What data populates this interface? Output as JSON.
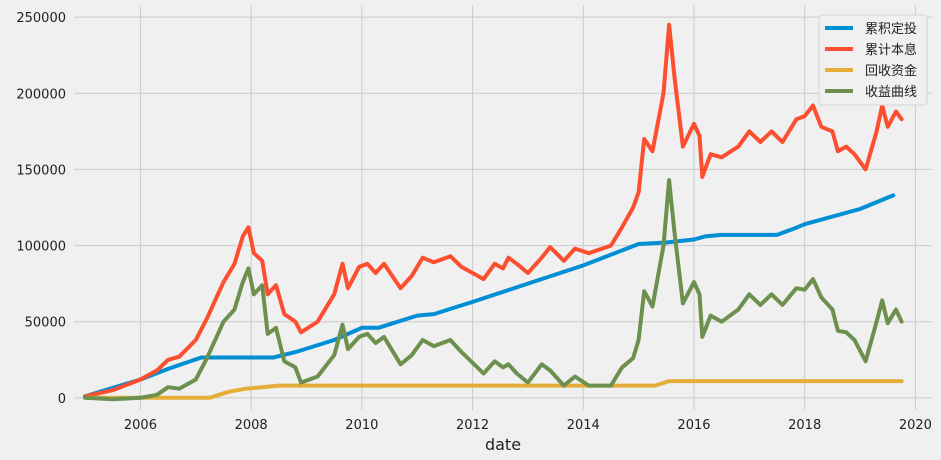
{
  "chart_data": {
    "type": "line",
    "title": "",
    "xlabel": "date",
    "ylabel": "",
    "xlim": [
      2004.8,
      2020.3
    ],
    "ylim": [
      -8000,
      258000
    ],
    "x_ticks": [
      2006,
      2008,
      2010,
      2012,
      2014,
      2016,
      2018,
      2020
    ],
    "y_ticks": [
      0,
      50000,
      100000,
      150000,
      200000,
      250000
    ],
    "grid": true,
    "legend_position": "top-right",
    "series": [
      {
        "name": "累积定投",
        "color": "#008fd5",
        "points": [
          [
            2005.0,
            1000
          ],
          [
            2006.0,
            12000
          ],
          [
            2006.5,
            19000
          ],
          [
            2007.1,
            26500
          ],
          [
            2007.5,
            26500
          ],
          [
            2008.0,
            26500
          ],
          [
            2008.4,
            26500
          ],
          [
            2008.8,
            30000
          ],
          [
            2009.5,
            38000
          ],
          [
            2010.0,
            46000
          ],
          [
            2010.3,
            46000
          ],
          [
            2011.0,
            54000
          ],
          [
            2011.3,
            55000
          ],
          [
            2012.0,
            63000
          ],
          [
            2013.0,
            75000
          ],
          [
            2014.0,
            87000
          ],
          [
            2015.0,
            101000
          ],
          [
            2015.5,
            102000
          ],
          [
            2016.0,
            104000
          ],
          [
            2016.2,
            106000
          ],
          [
            2016.5,
            107000
          ],
          [
            2017.0,
            107000
          ],
          [
            2017.5,
            107000
          ],
          [
            2017.8,
            111000
          ],
          [
            2018.0,
            114000
          ],
          [
            2019.0,
            124000
          ],
          [
            2019.6,
            133000
          ]
        ]
      },
      {
        "name": "累计本息",
        "color": "#fc4f30",
        "points": [
          [
            2005.0,
            1000
          ],
          [
            2005.5,
            5000
          ],
          [
            2006.0,
            12000
          ],
          [
            2006.3,
            18000
          ],
          [
            2006.5,
            25000
          ],
          [
            2006.7,
            27000
          ],
          [
            2007.0,
            38000
          ],
          [
            2007.2,
            52000
          ],
          [
            2007.5,
            76000
          ],
          [
            2007.7,
            88000
          ],
          [
            2007.85,
            106000
          ],
          [
            2007.95,
            112000
          ],
          [
            2008.05,
            95000
          ],
          [
            2008.2,
            90000
          ],
          [
            2008.3,
            68000
          ],
          [
            2008.45,
            74000
          ],
          [
            2008.6,
            55000
          ],
          [
            2008.8,
            50000
          ],
          [
            2008.9,
            43000
          ],
          [
            2009.2,
            50000
          ],
          [
            2009.5,
            68000
          ],
          [
            2009.65,
            88000
          ],
          [
            2009.75,
            72000
          ],
          [
            2009.95,
            86000
          ],
          [
            2010.1,
            88000
          ],
          [
            2010.25,
            82000
          ],
          [
            2010.4,
            88000
          ],
          [
            2010.7,
            72000
          ],
          [
            2010.9,
            80000
          ],
          [
            2011.1,
            92000
          ],
          [
            2011.3,
            89000
          ],
          [
            2011.6,
            93000
          ],
          [
            2011.8,
            86000
          ],
          [
            2012.2,
            78000
          ],
          [
            2012.4,
            88000
          ],
          [
            2012.55,
            85000
          ],
          [
            2012.65,
            92000
          ],
          [
            2012.8,
            88000
          ],
          [
            2013.0,
            82000
          ],
          [
            2013.25,
            92000
          ],
          [
            2013.4,
            99000
          ],
          [
            2013.65,
            90000
          ],
          [
            2013.85,
            98000
          ],
          [
            2014.1,
            95000
          ],
          [
            2014.5,
            100000
          ],
          [
            2014.7,
            112000
          ],
          [
            2014.9,
            125000
          ],
          [
            2015.0,
            135000
          ],
          [
            2015.1,
            170000
          ],
          [
            2015.25,
            162000
          ],
          [
            2015.45,
            200000
          ],
          [
            2015.55,
            245000
          ],
          [
            2015.65,
            210000
          ],
          [
            2015.8,
            165000
          ],
          [
            2016.0,
            180000
          ],
          [
            2016.1,
            172000
          ],
          [
            2016.15,
            145000
          ],
          [
            2016.3,
            160000
          ],
          [
            2016.5,
            158000
          ],
          [
            2016.8,
            165000
          ],
          [
            2017.0,
            175000
          ],
          [
            2017.2,
            168000
          ],
          [
            2017.4,
            175000
          ],
          [
            2017.6,
            168000
          ],
          [
            2017.85,
            183000
          ],
          [
            2018.0,
            185000
          ],
          [
            2018.15,
            192000
          ],
          [
            2018.3,
            178000
          ],
          [
            2018.5,
            175000
          ],
          [
            2018.6,
            162000
          ],
          [
            2018.75,
            165000
          ],
          [
            2018.9,
            160000
          ],
          [
            2019.1,
            150000
          ],
          [
            2019.3,
            175000
          ],
          [
            2019.4,
            192000
          ],
          [
            2019.5,
            178000
          ],
          [
            2019.65,
            188000
          ],
          [
            2019.75,
            183000
          ]
        ]
      },
      {
        "name": "回收资金",
        "color": "#e5ae38",
        "points": [
          [
            2005.0,
            0
          ],
          [
            2006.0,
            0
          ],
          [
            2007.0,
            0
          ],
          [
            2007.25,
            0
          ],
          [
            2007.6,
            4000
          ],
          [
            2007.9,
            6000
          ],
          [
            2008.2,
            7000
          ],
          [
            2008.5,
            8000
          ],
          [
            2009.0,
            8000
          ],
          [
            2012.0,
            8000
          ],
          [
            2014.0,
            8000
          ],
          [
            2015.0,
            8000
          ],
          [
            2015.3,
            8000
          ],
          [
            2015.55,
            11000
          ],
          [
            2016.0,
            11000
          ],
          [
            2018.0,
            11000
          ],
          [
            2019.75,
            11000
          ]
        ]
      },
      {
        "name": "收益曲线",
        "color": "#6d904f",
        "points": [
          [
            2005.0,
            0
          ],
          [
            2005.5,
            -1000
          ],
          [
            2006.0,
            0
          ],
          [
            2006.3,
            2000
          ],
          [
            2006.5,
            7000
          ],
          [
            2006.7,
            6000
          ],
          [
            2007.0,
            12000
          ],
          [
            2007.2,
            26000
          ],
          [
            2007.5,
            50000
          ],
          [
            2007.7,
            58000
          ],
          [
            2007.85,
            76000
          ],
          [
            2007.95,
            85000
          ],
          [
            2008.05,
            68000
          ],
          [
            2008.2,
            74000
          ],
          [
            2008.3,
            42000
          ],
          [
            2008.45,
            46000
          ],
          [
            2008.6,
            24000
          ],
          [
            2008.8,
            20000
          ],
          [
            2008.9,
            10000
          ],
          [
            2009.2,
            14000
          ],
          [
            2009.5,
            28000
          ],
          [
            2009.65,
            48000
          ],
          [
            2009.75,
            32000
          ],
          [
            2009.95,
            40000
          ],
          [
            2010.1,
            42000
          ],
          [
            2010.25,
            36000
          ],
          [
            2010.4,
            40000
          ],
          [
            2010.7,
            22000
          ],
          [
            2010.9,
            28000
          ],
          [
            2011.1,
            38000
          ],
          [
            2011.3,
            34000
          ],
          [
            2011.6,
            38000
          ],
          [
            2011.8,
            30000
          ],
          [
            2012.2,
            16000
          ],
          [
            2012.4,
            24000
          ],
          [
            2012.55,
            20000
          ],
          [
            2012.65,
            22000
          ],
          [
            2012.8,
            16000
          ],
          [
            2013.0,
            10000
          ],
          [
            2013.25,
            22000
          ],
          [
            2013.4,
            18000
          ],
          [
            2013.65,
            8000
          ],
          [
            2013.85,
            14000
          ],
          [
            2014.1,
            8000
          ],
          [
            2014.5,
            8000
          ],
          [
            2014.7,
            20000
          ],
          [
            2014.9,
            26000
          ],
          [
            2015.0,
            38000
          ],
          [
            2015.1,
            70000
          ],
          [
            2015.25,
            60000
          ],
          [
            2015.45,
            100000
          ],
          [
            2015.55,
            143000
          ],
          [
            2015.65,
            108000
          ],
          [
            2015.8,
            62000
          ],
          [
            2016.0,
            76000
          ],
          [
            2016.1,
            68000
          ],
          [
            2016.15,
            40000
          ],
          [
            2016.3,
            54000
          ],
          [
            2016.5,
            50000
          ],
          [
            2016.8,
            58000
          ],
          [
            2017.0,
            68000
          ],
          [
            2017.2,
            61000
          ],
          [
            2017.4,
            68000
          ],
          [
            2017.6,
            61000
          ],
          [
            2017.85,
            72000
          ],
          [
            2018.0,
            71000
          ],
          [
            2018.15,
            78000
          ],
          [
            2018.3,
            66000
          ],
          [
            2018.5,
            58000
          ],
          [
            2018.6,
            44000
          ],
          [
            2018.75,
            43000
          ],
          [
            2018.9,
            38000
          ],
          [
            2019.1,
            24000
          ],
          [
            2019.3,
            50000
          ],
          [
            2019.4,
            64000
          ],
          [
            2019.5,
            49000
          ],
          [
            2019.65,
            58000
          ],
          [
            2019.75,
            50000
          ]
        ]
      }
    ]
  }
}
